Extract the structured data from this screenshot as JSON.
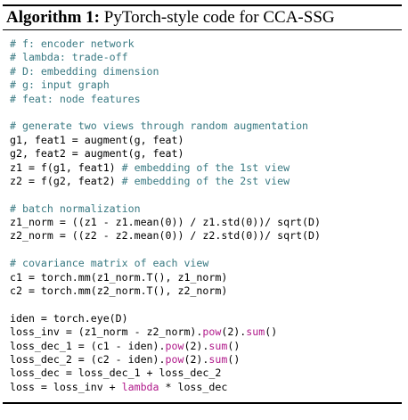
{
  "algorithm": {
    "label": "Algorithm 1:",
    "title": "PyTorch-style code for CCA-SSG"
  },
  "code": {
    "c1": "# f: encoder network",
    "c2": "# lambda: trade-off",
    "c3": "# D: embedding dimension",
    "c4": "# g: input graph",
    "c5": "# feat: node features",
    "c6": "# generate two views through random augmentation",
    "l7": "g1, feat1 = augment(g, feat)",
    "l8": "g2, feat2 = augment(g, feat)",
    "l9a": "z1 = f(g1, feat1) ",
    "l9b": "# embedding of the 1st view",
    "l10a": "z2 = f(g2, feat2) ",
    "l10b": "# embedding of the 2st view",
    "c11": "# batch normalization",
    "l12": "z1_norm = ((z1 - z1.mean(0)) / z1.std(0))/ sqrt(D)",
    "l13": "z2_norm = ((z2 - z2.mean(0)) / z2.std(0))/ sqrt(D)",
    "c14": "# covariance matrix of each view",
    "l15": "c1 = torch.mm(z1_norm.T(), z1_norm)",
    "l16": "c2 = torch.mm(z2_norm.T(), z2_norm)",
    "l17": "iden = torch.eye(D)",
    "l18a": "loss_inv = (z1_norm - z2_norm).",
    "l18b": "pow",
    "l18c": "(2).",
    "l18d": "sum",
    "l18e": "()",
    "l19a": "loss_dec_1 = (c1 - iden).",
    "l19b": "pow",
    "l19c": "(2).",
    "l19d": "sum",
    "l19e": "()",
    "l20a": "loss_dec_2 = (c2 - iden).",
    "l20b": "pow",
    "l20c": "(2).",
    "l20d": "sum",
    "l20e": "()",
    "l21": "loss_dec = loss_dec_1 + loss_dec_2",
    "l22a": "loss = loss_inv + ",
    "l22b": "lambda",
    "l22c": " * loss_dec"
  },
  "colors": {
    "comment": "#3a7a83",
    "keyword": "#b0188a",
    "text": "#000000"
  }
}
